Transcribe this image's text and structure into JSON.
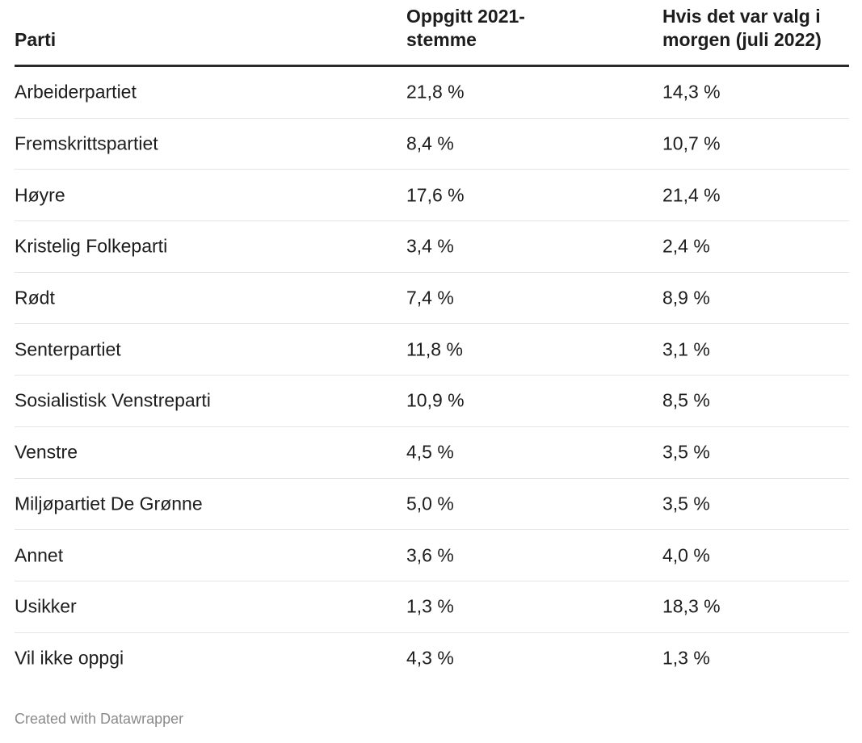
{
  "chart_data": {
    "type": "table",
    "columns": [
      "Parti",
      "Oppgitt 2021-\nstemme",
      "Hvis det var valg i\nmorgen (juli 2022)"
    ],
    "rows": [
      [
        "Arbeiderpartiet",
        "21,8 %",
        "14,3 %"
      ],
      [
        "Fremskrittspartiet",
        "8,4 %",
        "10,7 %"
      ],
      [
        "Høyre",
        "17,6 %",
        "21,4 %"
      ],
      [
        "Kristelig Folkeparti",
        "3,4 %",
        "2,4 %"
      ],
      [
        "Rødt",
        "7,4 %",
        "8,9 %"
      ],
      [
        "Senterpartiet",
        "11,8 %",
        "3,1 %"
      ],
      [
        "Sosialistisk Venstreparti",
        "10,9 %",
        "8,5 %"
      ],
      [
        "Venstre",
        "4,5 %",
        "3,5 %"
      ],
      [
        "Miljøpartiet De Grønne",
        "5,0 %",
        "3,5 %"
      ],
      [
        "Annet",
        "3,6 %",
        "4,0 %"
      ],
      [
        "Usikker",
        "1,3 %",
        "18,3 %"
      ],
      [
        "Vil ikke oppgi",
        "4,3 %",
        "1,3 %"
      ]
    ]
  },
  "footer": "Created with Datawrapper",
  "colors": {
    "text": "#1d1d1d",
    "header_rule": "#2a2a2a",
    "row_divider": "#e4e4e4",
    "footer_text": "#8a8a8a"
  }
}
